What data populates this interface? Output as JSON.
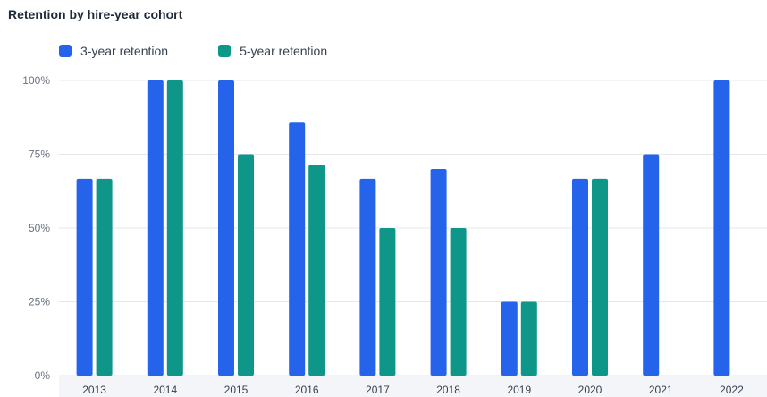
{
  "title": "Retention by hire-year cohort",
  "colors": {
    "s1": "#2563eb",
    "s2": "#0e9688",
    "grid": "#e5e7eb",
    "axis_band": "#f3f5f9"
  },
  "chart_data": {
    "type": "bar",
    "title": "Retention by hire-year cohort",
    "categories": [
      "2013",
      "2014",
      "2015",
      "2016",
      "2017",
      "2018",
      "2019",
      "2020",
      "2021",
      "2022"
    ],
    "series": [
      {
        "name": "3-year retention",
        "values": [
          66.7,
          100,
          100,
          85.7,
          66.7,
          70,
          25,
          66.7,
          75,
          100
        ]
      },
      {
        "name": "5-year retention",
        "values": [
          66.7,
          100,
          75,
          71.4,
          50,
          50,
          25,
          66.7,
          null,
          null
        ]
      }
    ],
    "ylim": [
      0,
      100
    ],
    "yticks": [
      0,
      25,
      50,
      75,
      100
    ],
    "ytick_labels": [
      "0%",
      "25%",
      "50%",
      "75%",
      "100%"
    ],
    "legend": "top-left",
    "grid": true
  }
}
